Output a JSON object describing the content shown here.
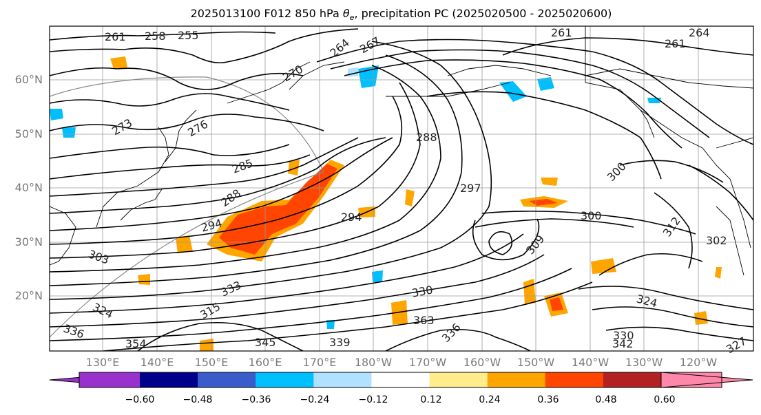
{
  "title_prefix": "2025013100 F012 850 hPa ",
  "title_symbol": "θ",
  "title_symbol_sub": "e",
  "title_suffix": ", precipitation PC (2025020500 - 2025020600)",
  "lat_labels": [
    "60°N",
    "50°N",
    "40°N",
    "30°N",
    "20°N"
  ],
  "lon_labels": [
    "130°E",
    "140°E",
    "150°E",
    "160°E",
    "170°E",
    "180°W",
    "170°W",
    "160°W",
    "150°W",
    "140°W",
    "130°W",
    "120°W"
  ],
  "contour_labels": [
    "261",
    "258",
    "255",
    "264",
    "267",
    "261",
    "261",
    "264",
    "273",
    "276",
    "270",
    "285",
    "288",
    "288",
    "297",
    "300",
    "294",
    "294",
    "300",
    "312",
    "302",
    "303",
    "309",
    "330",
    "324",
    "324",
    "315",
    "333",
    "336",
    "330",
    "342",
    "336",
    "339",
    "345",
    "327",
    "354",
    "363"
  ],
  "colorbar": {
    "colors": [
      "#9932cc",
      "#00008b",
      "#3a5bcc",
      "#00bfff",
      "#b0e2ff",
      "#ffffff",
      "#ffec8b",
      "#ffa500",
      "#ff4500",
      "#b22222",
      "#ff88aa"
    ],
    "tick_labels": [
      "−0.60",
      "−0.48",
      "−0.36",
      "−0.24",
      "−0.12",
      "0.12",
      "0.24",
      "0.36",
      "0.48",
      "0.60"
    ]
  }
}
